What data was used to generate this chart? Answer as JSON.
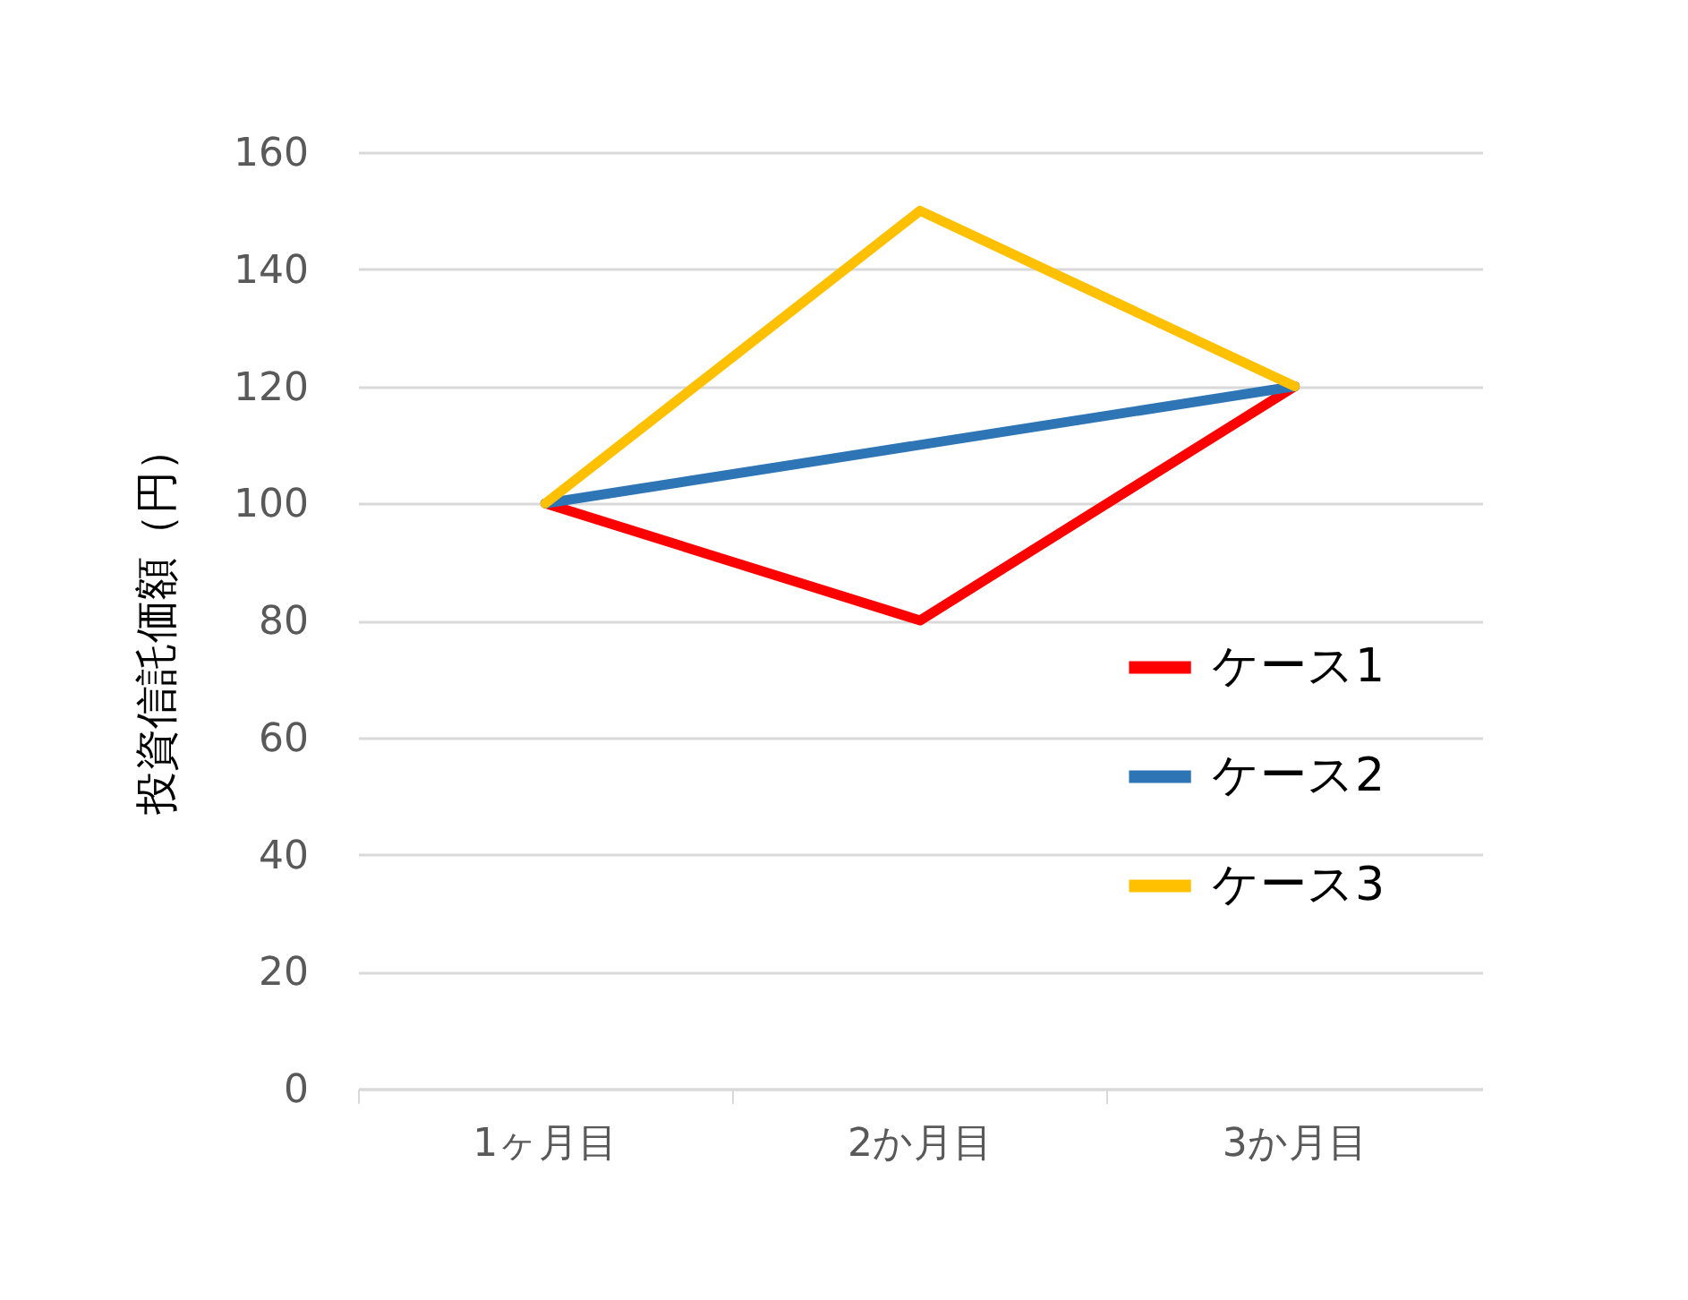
{
  "chart_data": {
    "type": "line",
    "ylabel": "投資信託価額（円）",
    "categories": [
      "1ヶ月目",
      "2か月目",
      "3か月目"
    ],
    "series": [
      {
        "name": "ケース1",
        "color": "#ff0000",
        "values": [
          100,
          80,
          120
        ]
      },
      {
        "name": "ケース2",
        "color": "#2e75b6",
        "values": [
          100,
          110,
          120
        ]
      },
      {
        "name": "ケース3",
        "color": "#ffc000",
        "values": [
          100,
          150,
          120
        ]
      }
    ],
    "ylim": [
      0,
      160
    ],
    "yticks": [
      0,
      20,
      40,
      60,
      80,
      100,
      120,
      140,
      160
    ],
    "grid": "y",
    "legend": "right",
    "marker": "none",
    "line_style": "solid"
  }
}
